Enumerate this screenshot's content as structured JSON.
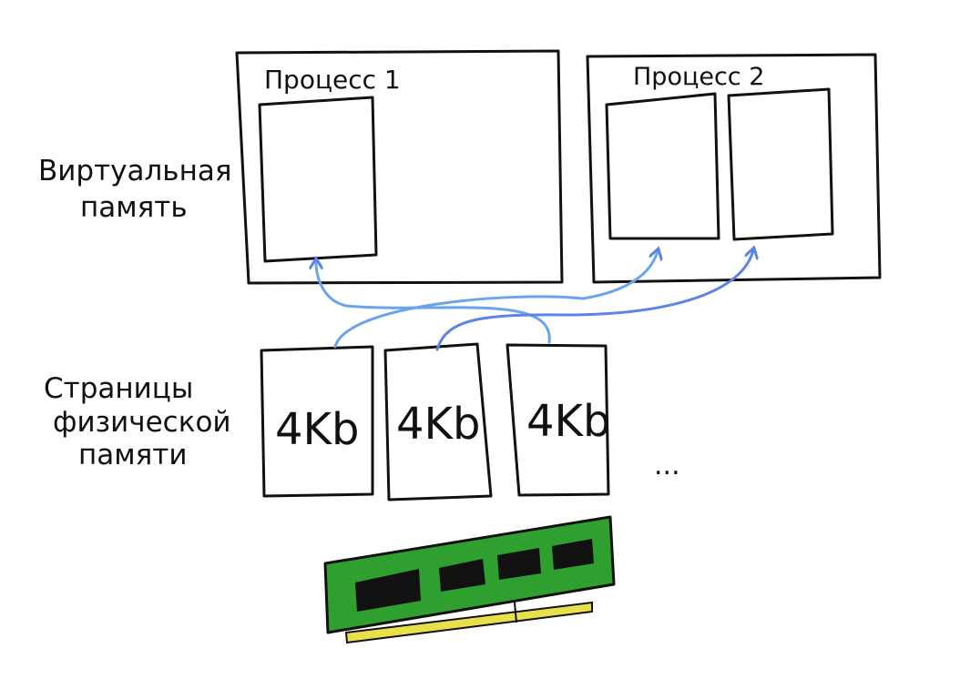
{
  "labels": {
    "virtual_memory_line1": "Виртуальная",
    "virtual_memory_line2": "память",
    "physical_pages_line1": "Страницы",
    "physical_pages_line2": "физической",
    "physical_pages_line3": "памяти"
  },
  "processes": [
    {
      "title": "Процесс 1"
    },
    {
      "title": "Процесс 2"
    }
  ],
  "pages": [
    {
      "size": "4Kb"
    },
    {
      "size": "4Kb"
    },
    {
      "size": "4Kb"
    }
  ],
  "ellipsis": "...",
  "colors": {
    "stroke": "#111111",
    "arrow_light": "#6aa4ee",
    "arrow_mid": "#5a84e6",
    "ram_board": "#2f9f2f",
    "ram_chip": "#111111",
    "ram_pins": "#e8e04a"
  }
}
